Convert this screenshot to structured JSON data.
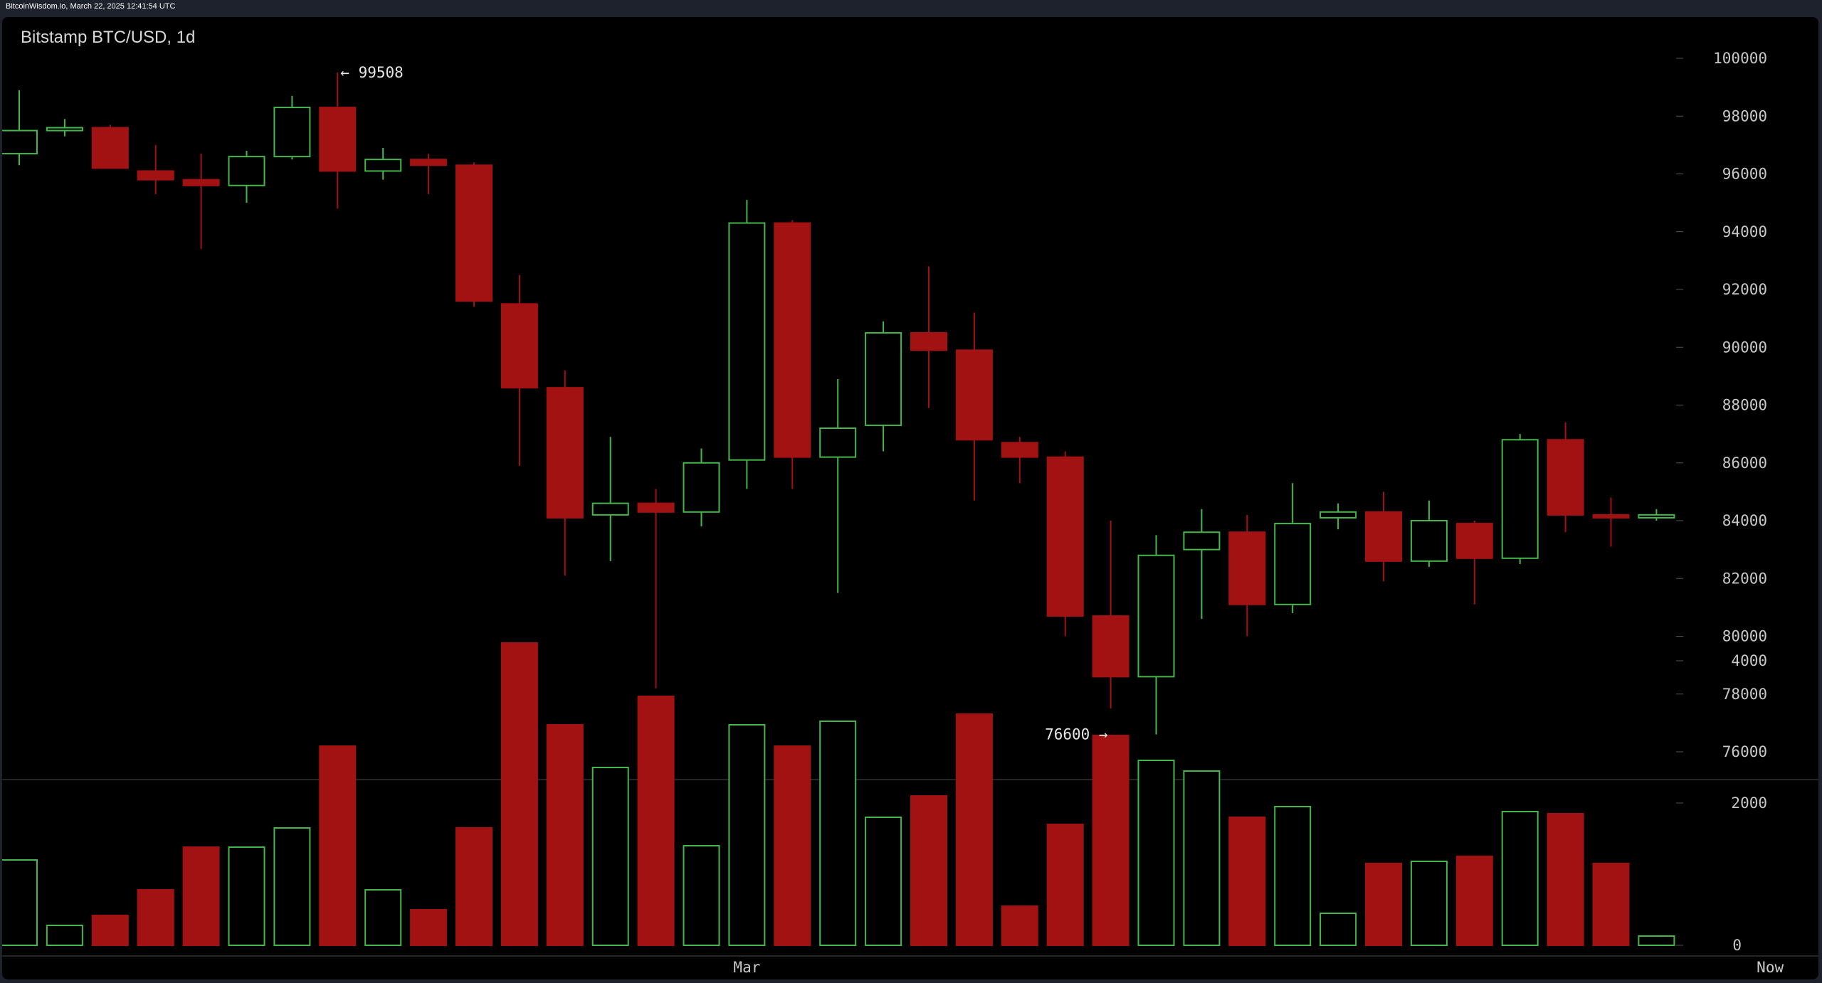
{
  "header": {
    "text": "BitcoinWisdom.io, March 22, 2025 12:41:54 UTC"
  },
  "colors": {
    "up": "#43b74a",
    "down": "#a31212",
    "background": "#000000",
    "axis_text": "#c8c8c8"
  },
  "chart_data": {
    "type": "candlestick",
    "title": "Bitstamp BTC/USD, 1d",
    "price_ylim": [
      75000,
      100500
    ],
    "price_ticks": [
      76000,
      78000,
      80000,
      82000,
      84000,
      86000,
      88000,
      90000,
      92000,
      94000,
      96000,
      98000,
      100000
    ],
    "volume_ylim": [
      0,
      4300
    ],
    "volume_ticks": [
      0,
      2000,
      4000
    ],
    "x_labels": [
      {
        "index": 16,
        "label": "Mar"
      },
      {
        "index": 38.5,
        "label": "Now"
      }
    ],
    "annotations": [
      {
        "index": 7,
        "value": 99508,
        "text": "← 99508",
        "side": "right"
      },
      {
        "index": 24,
        "value": 76600,
        "text": "76600 →",
        "side": "left"
      }
    ],
    "candles": [
      {
        "open": 96700,
        "high": 98900,
        "low": 96300,
        "close": 97500,
        "volume": 1200
      },
      {
        "open": 97500,
        "high": 97900,
        "low": 97300,
        "close": 97600,
        "volume": 280
      },
      {
        "open": 97600,
        "high": 97700,
        "low": 96200,
        "close": 96200,
        "volume": 420
      },
      {
        "open": 96100,
        "high": 97000,
        "low": 95300,
        "close": 95800,
        "volume": 780
      },
      {
        "open": 95800,
        "high": 96700,
        "low": 93400,
        "close": 95600,
        "volume": 1380
      },
      {
        "open": 95600,
        "high": 96800,
        "low": 95000,
        "close": 96600,
        "volume": 1380
      },
      {
        "open": 96600,
        "high": 98700,
        "low": 96500,
        "close": 98300,
        "volume": 1650
      },
      {
        "open": 98300,
        "high": 99508,
        "low": 94800,
        "close": 96100,
        "volume": 2800
      },
      {
        "open": 96100,
        "high": 96900,
        "low": 95800,
        "close": 96500,
        "volume": 780
      },
      {
        "open": 96500,
        "high": 96700,
        "low": 95300,
        "close": 96300,
        "volume": 500
      },
      {
        "open": 96300,
        "high": 96400,
        "low": 91400,
        "close": 91600,
        "volume": 1650
      },
      {
        "open": 91500,
        "high": 92500,
        "low": 85900,
        "close": 88600,
        "volume": 4250
      },
      {
        "open": 88600,
        "high": 89200,
        "low": 82100,
        "close": 84100,
        "volume": 3100
      },
      {
        "open": 84200,
        "high": 86900,
        "low": 82600,
        "close": 84600,
        "volume": 2500
      },
      {
        "open": 84600,
        "high": 85100,
        "low": 78200,
        "close": 84300,
        "volume": 3500
      },
      {
        "open": 84300,
        "high": 86500,
        "low": 83800,
        "close": 86000,
        "volume": 1400
      },
      {
        "open": 86100,
        "high": 95100,
        "low": 85100,
        "close": 94300,
        "volume": 3100
      },
      {
        "open": 94300,
        "high": 94400,
        "low": 85100,
        "close": 86200,
        "volume": 2800
      },
      {
        "open": 86200,
        "high": 88900,
        "low": 81500,
        "close": 87200,
        "volume": 3150
      },
      {
        "open": 87300,
        "high": 90900,
        "low": 86400,
        "close": 90500,
        "volume": 1800
      },
      {
        "open": 90500,
        "high": 92800,
        "low": 87900,
        "close": 89900,
        "volume": 2100
      },
      {
        "open": 89900,
        "high": 91200,
        "low": 84700,
        "close": 86800,
        "volume": 3250
      },
      {
        "open": 86700,
        "high": 86900,
        "low": 85300,
        "close": 86200,
        "volume": 550
      },
      {
        "open": 86200,
        "high": 86400,
        "low": 80000,
        "close": 80700,
        "volume": 1700
      },
      {
        "open": 80700,
        "high": 84000,
        "low": 77500,
        "close": 78600,
        "volume": 2950
      },
      {
        "open": 78600,
        "high": 83500,
        "low": 76600,
        "close": 82800,
        "volume": 2600
      },
      {
        "open": 83000,
        "high": 84400,
        "low": 80600,
        "close": 83600,
        "volume": 2450
      },
      {
        "open": 83600,
        "high": 84200,
        "low": 80000,
        "close": 81100,
        "volume": 1800
      },
      {
        "open": 81100,
        "high": 85300,
        "low": 80800,
        "close": 83900,
        "volume": 1950
      },
      {
        "open": 84100,
        "high": 84600,
        "low": 83700,
        "close": 84300,
        "volume": 450
      },
      {
        "open": 84300,
        "high": 85000,
        "low": 81900,
        "close": 82600,
        "volume": 1150
      },
      {
        "open": 82600,
        "high": 84700,
        "low": 82400,
        "close": 84000,
        "volume": 1180
      },
      {
        "open": 83900,
        "high": 84000,
        "low": 81100,
        "close": 82700,
        "volume": 1250
      },
      {
        "open": 82700,
        "high": 87000,
        "low": 82500,
        "close": 86800,
        "volume": 1880
      },
      {
        "open": 86800,
        "high": 87400,
        "low": 83600,
        "close": 84200,
        "volume": 1850
      },
      {
        "open": 84200,
        "high": 84800,
        "low": 83100,
        "close": 84100,
        "volume": 1150
      },
      {
        "open": 84100,
        "high": 84400,
        "low": 84000,
        "close": 84200,
        "volume": 130
      }
    ]
  }
}
